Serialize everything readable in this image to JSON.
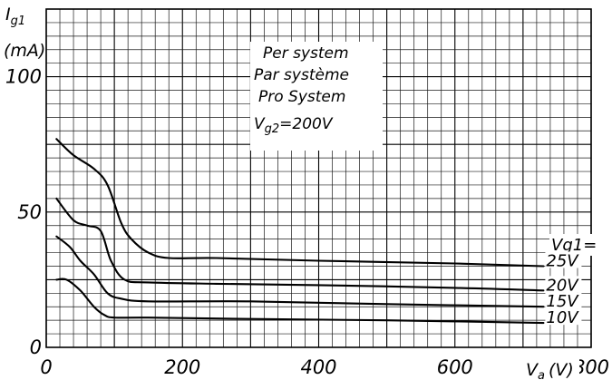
{
  "chart_data": {
    "type": "line",
    "x_axis": {
      "label": "V",
      "label_sub": "a",
      "unit": "(V)",
      "range": [
        0,
        800
      ],
      "ticks": [
        "0",
        "200",
        "400",
        "600",
        "800"
      ]
    },
    "y_axis": {
      "label": "I",
      "label_sub": "g1",
      "unit": "(mA)",
      "range": [
        0,
        125
      ],
      "ticks": [
        "0",
        "50",
        "100"
      ]
    },
    "grid": true,
    "annotation": {
      "lines": [
        "Per system",
        "Par système",
        "Pro System",
        "V",
        "g2",
        "=200V"
      ]
    },
    "legend_title": "Vg1=",
    "series": [
      {
        "name": "25V",
        "x": [
          15,
          40,
          70,
          90,
          110,
          125,
          150,
          180,
          250,
          400,
          600,
          730
        ],
        "values": [
          77,
          71,
          66,
          60,
          46,
          40,
          35,
          33,
          33,
          32,
          31,
          30
        ]
      },
      {
        "name": "20V",
        "x": [
          15,
          40,
          60,
          80,
          95,
          115,
          150,
          250,
          400,
          600,
          730
        ],
        "values": [
          55,
          47,
          45,
          43,
          32,
          25,
          24,
          23.5,
          23,
          22,
          21
        ]
      },
      {
        "name": "15V",
        "x": [
          15,
          35,
          50,
          70,
          90,
          110,
          150,
          300,
          500,
          730
        ],
        "values": [
          41,
          37,
          32,
          27,
          20,
          18,
          17,
          17,
          16,
          15
        ]
      },
      {
        "name": "10V",
        "x": [
          15,
          30,
          50,
          70,
          85,
          100,
          150,
          300,
          500,
          730
        ],
        "values": [
          25,
          25,
          21,
          15,
          12,
          11,
          11,
          10.5,
          10,
          9
        ]
      }
    ]
  }
}
